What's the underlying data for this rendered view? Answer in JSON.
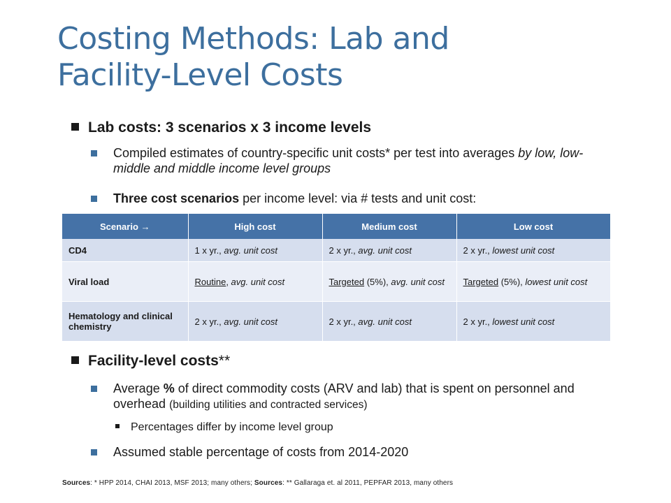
{
  "title": {
    "line1": "Costing Methods: Lab and",
    "line2": "Facility-Level Costs"
  },
  "lab": {
    "heading": "Lab costs: 3 scenarios x 3 income levels",
    "bullet1": {
      "a": "Compiled estimates of country-specific unit costs* per test into averages ",
      "b": "by low, low-middle and middle income level groups"
    },
    "bullet2": {
      "bold": "Three cost scenarios",
      "rest": " per income level: via # tests and unit cost:"
    }
  },
  "table": {
    "headers": [
      "Scenario →",
      "High cost",
      "Medium cost",
      "Low cost"
    ],
    "rows": [
      {
        "label": "CD4",
        "high": {
          "pre": "1 x yr., ",
          "it": "avg. unit cost"
        },
        "medium": {
          "pre": "2 x yr., ",
          "it": "avg. unit cost"
        },
        "low": {
          "pre": "2 x yr., ",
          "it": "lowest unit cost"
        }
      },
      {
        "label": "Viral load",
        "high": {
          "u": "Routine",
          "pre": ", ",
          "it": "avg. unit cost"
        },
        "medium": {
          "u": "Targeted",
          "pre": " (5%), ",
          "it": "avg. unit cost"
        },
        "low": {
          "u": "Targeted",
          "pre": " (5%), ",
          "it": "lowest unit cost"
        }
      },
      {
        "label": "Hematology and clinical chemistry",
        "high": {
          "pre": "2 x yr., ",
          "it": "avg. unit cost"
        },
        "medium": {
          "pre": "2 x yr., ",
          "it": "avg. unit cost"
        },
        "low": {
          "pre": "2 x yr., ",
          "it": "lowest unit cost"
        }
      }
    ]
  },
  "facility": {
    "heading": "Facility-level costs",
    "heading_suffix": "**",
    "bullet1": {
      "a": "Average ",
      "b": "%",
      "c": " of direct commodity costs (ARV and lab) that is spent on personnel and overhead ",
      "d": "(building utilities and contracted services)"
    },
    "sub1": "Percentages differ by income level group",
    "bullet2": "Assumed stable percentage of costs from 2014-2020"
  },
  "sources": {
    "label1": "Sources",
    "text1": ": * HPP 2014, CHAI 2013, MSF 2013; many others; ",
    "label2": "Sources",
    "text2": ": ** Gallaraga et. al 2011, PEPFAR 2013, many others"
  }
}
